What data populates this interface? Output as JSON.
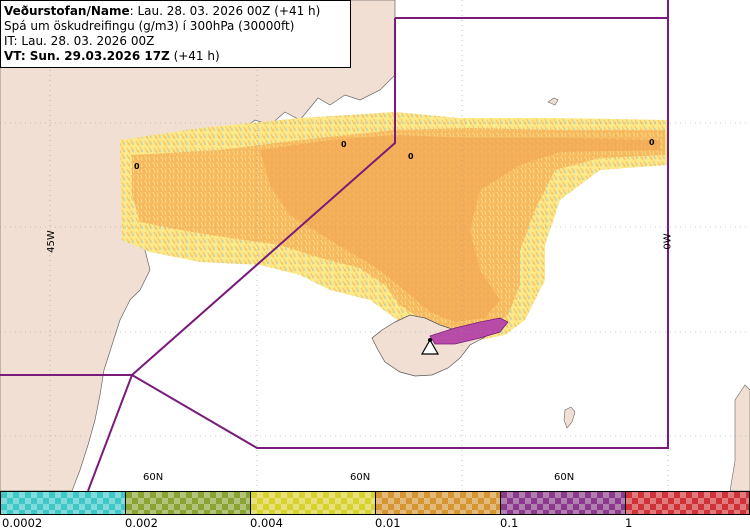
{
  "header": {
    "line1_bold": "Veðurstofan/Name",
    "line1_rest": ": Lau. 28. 03. 2026 00Z (+41 h)",
    "line2": "Spá um öskudreifingu (g/m3) í 300hPa (30000ft)",
    "line3": "IT: Lau. 28. 03. 2026 00Z",
    "line4_bold": "VT: Sun. 29.03.2026 17Z",
    "line4_rest": " (+41 h)"
  },
  "map": {
    "grid_labels": {
      "lat_60n_a": "60N",
      "lat_60n_b": "60N",
      "lat_60n_c": "60N",
      "lon_45w": "45W",
      "lon_0w": "0W"
    },
    "contour_labels": {
      "a": "0",
      "b": "0",
      "c": "0",
      "d": "0"
    },
    "colors": {
      "land": "#f1dfd3",
      "sea": "#ffffff",
      "boundary": "#7a1a7a",
      "ash_low": "#f5e77a",
      "ash_mid": "#f8c56b",
      "ash_high": "#f3a955",
      "ash_top": "#b84ba8",
      "cyan_fringe": "#9fe3ea"
    },
    "marker": "volcano-warning-icon"
  },
  "legend": {
    "colors": [
      "#3fc7c7",
      "#8aa433",
      "#d8d231",
      "#d59533",
      "#8a3a8a",
      "#cf3238"
    ],
    "ticks": [
      "0.0002",
      "0.002",
      "0.004",
      "0.01",
      "0.1",
      "1"
    ]
  }
}
